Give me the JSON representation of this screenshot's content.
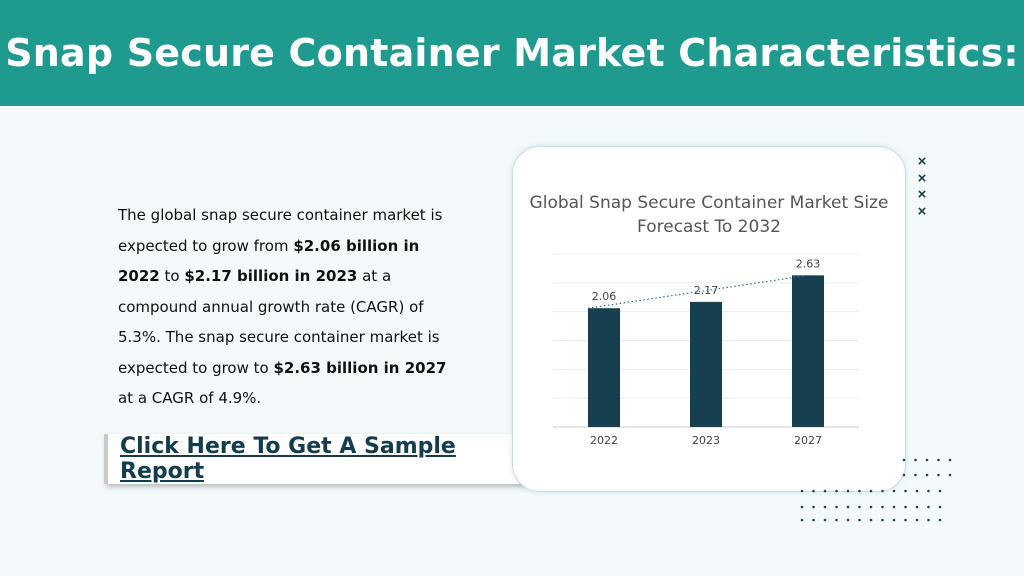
{
  "header": {
    "title": "Snap Secure Container Market Characteristics:"
  },
  "description": {
    "t1": "The global snap secure container market is expected to grow from ",
    "b1": "$2.06 billion in 2022",
    "t2": " to ",
    "b2": "$2.17 billion in 2023",
    "t3": " at a compound annual growth rate (CAGR) of 5.3%. The snap secure container market is expected to grow to ",
    "b3": "$2.63 billion in 2027",
    "t4": " at a CAGR of 4.9%."
  },
  "cta": {
    "label": "Click Here To Get A Sample Report"
  },
  "decor": {
    "x_mark": "×",
    "x_count": 4
  },
  "colors": {
    "header": "#1f9a8e",
    "bar": "#163f4f",
    "link": "#133d4e"
  },
  "chart_data": {
    "type": "bar",
    "title": "Global Snap Secure Container Market Size Forecast To 2032",
    "categories": [
      "2022",
      "2023",
      "2027"
    ],
    "values": [
      2.06,
      2.17,
      2.63
    ],
    "data_labels": [
      "2.06",
      "2.17",
      "2.63"
    ],
    "ylim": [
      0,
      3
    ],
    "grid": true,
    "trendline": "dotted"
  }
}
